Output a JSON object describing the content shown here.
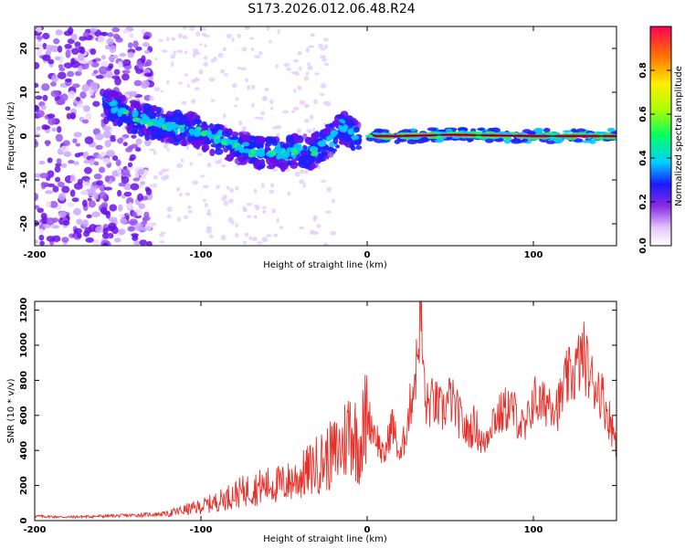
{
  "title": "S173.2026.012.06.48.R24",
  "colors": {
    "snr_line": "#e8302a",
    "ridge_line": "#000000"
  },
  "chart_data": [
    {
      "type": "heatmap",
      "xlabel": "Height of straight line (km)",
      "ylabel": "Frequency (Hz)",
      "xlim": [
        -200,
        150
      ],
      "ylim": [
        -25,
        25
      ],
      "x_ticks": [
        -200,
        -100,
        0,
        100
      ],
      "y_ticks": [
        -20,
        -10,
        0,
        10,
        20
      ],
      "colorbar": {
        "label": "Normalized spectral amplitude",
        "range": [
          0,
          1
        ],
        "ticks": [
          "0.0",
          "0.2",
          "0.4",
          "0.6",
          "0.8"
        ]
      },
      "ridge": {
        "x": [
          -155,
          -145,
          -130,
          -115,
          -100,
          -90,
          -80,
          -70,
          -60,
          -50,
          -40,
          -35,
          -30,
          -25,
          -20,
          -15,
          -10,
          -5,
          0,
          5,
          20,
          50,
          100,
          150
        ],
        "y": [
          7,
          5,
          3,
          2,
          1,
          -1,
          -2,
          -3.5,
          -4,
          -4,
          -3,
          -4,
          -3,
          -2,
          0,
          2,
          1,
          -1,
          1,
          0,
          0,
          0.3,
          0,
          0
        ]
      }
    },
    {
      "type": "line",
      "xlabel": "Height of straight line (km)",
      "ylabel": "SNR (10 * v/v)",
      "xlim": [
        -200,
        150
      ],
      "ylim": [
        0,
        1250
      ],
      "x_ticks": [
        -200,
        -100,
        0,
        100
      ],
      "y_ticks": [
        0,
        200,
        400,
        600,
        800,
        1000,
        1200
      ],
      "series": [
        {
          "x": [
            -200,
            -180,
            -160,
            -140,
            -120,
            -110,
            -100,
            -90,
            -80,
            -70,
            -60,
            -50,
            -40,
            -30,
            -20,
            -15,
            -10,
            -5,
            0,
            5,
            10,
            15,
            20,
            25,
            30,
            32,
            35,
            40,
            45,
            50,
            55,
            60,
            65,
            70,
            75,
            80,
            85,
            90,
            95,
            100,
            105,
            110,
            115,
            120,
            125,
            130,
            135,
            140,
            145,
            150
          ],
          "values": [
            25,
            20,
            25,
            30,
            40,
            60,
            80,
            110,
            150,
            180,
            200,
            210,
            250,
            320,
            380,
            420,
            550,
            420,
            600,
            500,
            350,
            560,
            350,
            600,
            900,
            1220,
            650,
            680,
            620,
            700,
            600,
            500,
            550,
            420,
            580,
            600,
            650,
            600,
            500,
            700,
            650,
            700,
            650,
            800,
            850,
            950,
            800,
            750,
            600,
            450
          ]
        }
      ]
    }
  ]
}
